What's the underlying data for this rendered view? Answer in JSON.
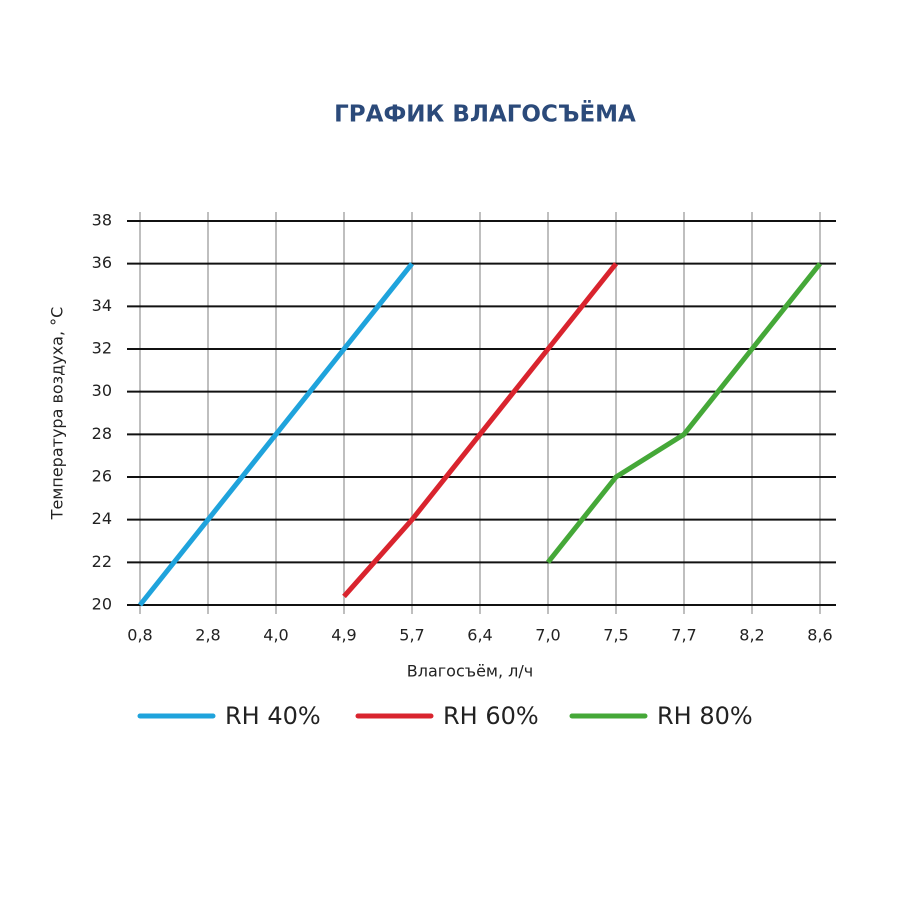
{
  "chart_data": {
    "type": "line",
    "title": "ГРАФИК ВЛАГОСЪЁМА",
    "x_label": "Влагосъём, л/ч",
    "y_label": "Температура воздуха, °C",
    "categories": [
      "0,8",
      "2,8",
      "4,0",
      "4,9",
      "5,7",
      "6,4",
      "7,0",
      "7,5",
      "7,7",
      "8,2",
      "8,6"
    ],
    "series": [
      {
        "name": "RH 40%",
        "color": "#1fa3dc",
        "values": [
          20,
          24,
          28,
          32,
          36,
          null,
          null,
          null,
          null,
          null,
          null
        ]
      },
      {
        "name": "RH 60%",
        "color": "#d9242e",
        "values": [
          null,
          null,
          null,
          20.4,
          24,
          28,
          32,
          36,
          null,
          null,
          null
        ]
      },
      {
        "name": "RH 80%",
        "color": "#45a838",
        "values": [
          null,
          null,
          null,
          null,
          null,
          null,
          22,
          26,
          28,
          32,
          36
        ]
      }
    ],
    "ylim": [
      20,
      38
    ],
    "yticks": [
      20,
      22,
      24,
      26,
      28,
      30,
      32,
      34,
      36,
      38
    ],
    "grid": true
  }
}
